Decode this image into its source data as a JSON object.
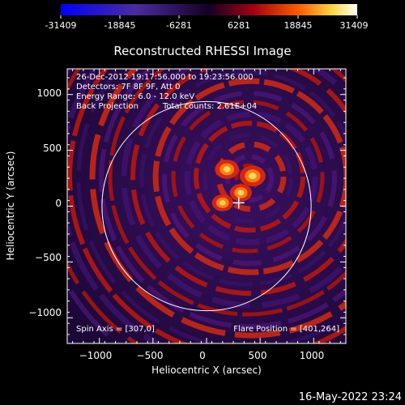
{
  "colorbar": {
    "ticks": [
      "-31409",
      "-18845",
      "-6281",
      "6281",
      "18845",
      "31409"
    ],
    "range": [
      -31409,
      31409
    ]
  },
  "title": "Reconstructed RHESSI Image",
  "info": {
    "line1": "26-Dec-2012 19:17:56.000 to 19:23:56.000",
    "line2": "Detectors: 7F 8F 9F, Att 0",
    "line3": "Energy Range: 6.0 - 12.0 keV",
    "line4a": "Back Projection",
    "line4b": "Total counts: 2.61E+04"
  },
  "footer": {
    "spin_axis": "Spin Axis = [307,0]",
    "flare_position": "Flare Position = [401,264]"
  },
  "timestamp": "16-May-2022 23:24",
  "chart_data": {
    "type": "heatmap",
    "title": "Reconstructed RHESSI Image",
    "xlabel": "Heliocentric X (arcsec)",
    "ylabel": "Heliocentric Y (arcsec)",
    "xlim": [
      -1300,
      1300
    ],
    "ylim": [
      -1230,
      1230
    ],
    "xticks": [
      -1000,
      -500,
      0,
      500,
      1000
    ],
    "yticks": [
      1000,
      500,
      0,
      -500,
      -1000
    ],
    "xtick_labels": [
      "−1000",
      "−500",
      "0",
      "500",
      "1000"
    ],
    "ytick_labels": [
      "1000",
      "500",
      "0",
      "−500",
      "−1000"
    ],
    "solar_limb_radius": 976,
    "spin_axis": [
      307,
      0
    ],
    "flare_position": [
      401,
      264
    ],
    "colormap_range": [
      -31409,
      31409
    ],
    "peaks": [
      {
        "x": 430,
        "y": 270,
        "level": 1.0
      },
      {
        "x": 190,
        "y": 330,
        "level": 0.8
      },
      {
        "x": 320,
        "y": 120,
        "level": 0.6
      },
      {
        "x": 150,
        "y": 30,
        "level": 0.5
      }
    ]
  }
}
